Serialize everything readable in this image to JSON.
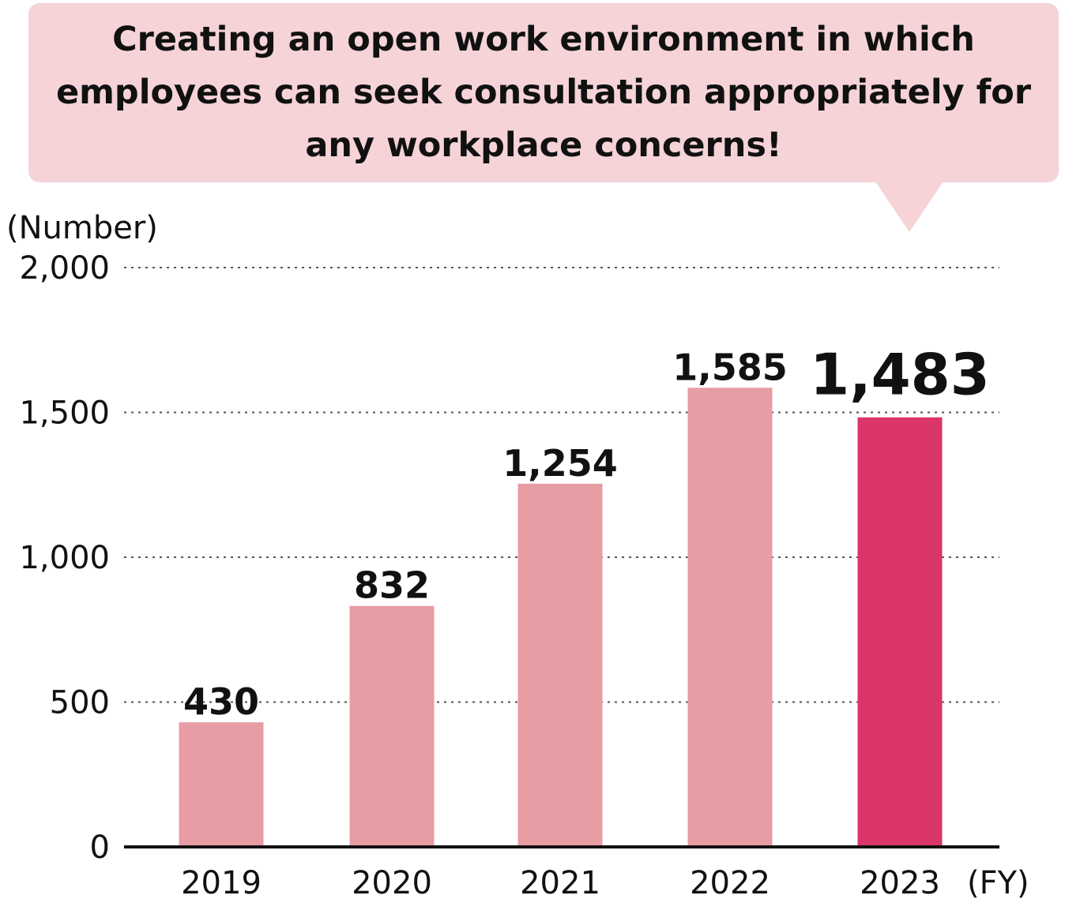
{
  "callout": {
    "lines": [
      "Creating an open work environment in which",
      "employees can seek consultation appropriately for",
      "any workplace concerns!"
    ]
  },
  "colors": {
    "bar_default": "#e89ca4",
    "bar_highlight": "#da366a",
    "callout_bg": "#f5d3d7",
    "grid": "#555555",
    "axis": "#111111"
  },
  "chart_data": {
    "type": "bar",
    "title": "",
    "xlabel": "(FY)",
    "ylabel": "(Number)",
    "categories": [
      "2019",
      "2020",
      "2021",
      "2022",
      "2023"
    ],
    "values": [
      430,
      832,
      1254,
      1585,
      1483
    ],
    "data_labels": [
      "430",
      "832",
      "1,254",
      "1,585",
      "1,483"
    ],
    "highlight": "2023",
    "ylim": [
      0,
      2000
    ],
    "yticks": [
      0,
      500,
      1000,
      1500,
      2000
    ],
    "ytick_labels": [
      "0",
      "500",
      "1,000",
      "1,500",
      "2,000"
    ],
    "grid": true
  }
}
